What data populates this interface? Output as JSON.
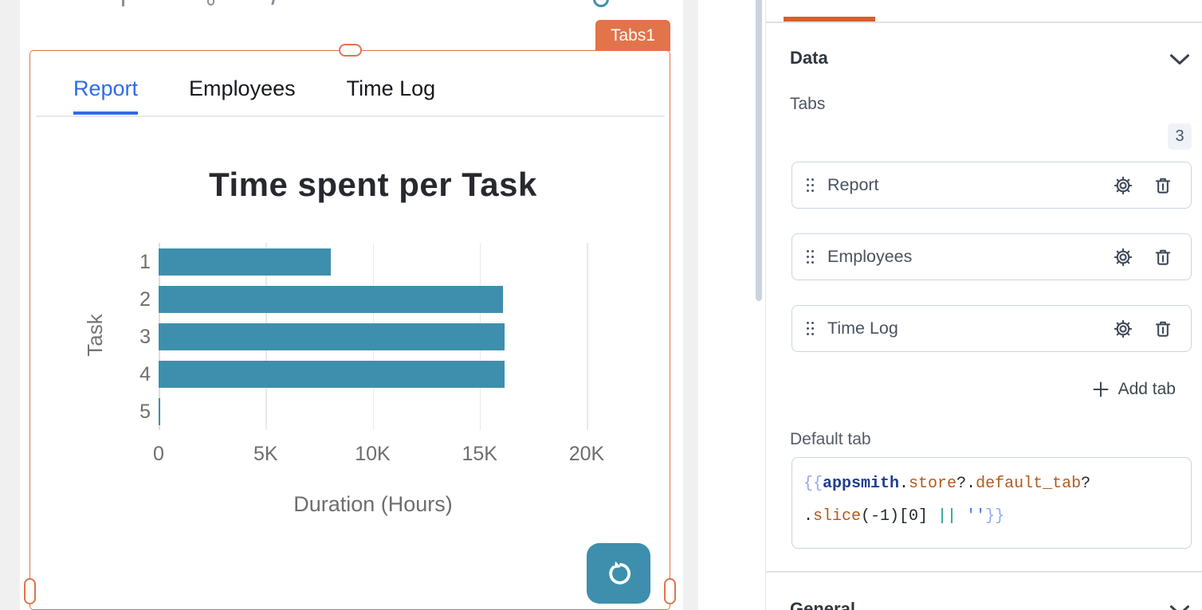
{
  "canvas": {
    "selected_widget_name": "Tabs1",
    "widget_tabs": [
      {
        "label": "Report",
        "active": true
      },
      {
        "label": "Employees",
        "active": false
      },
      {
        "label": "Time Log",
        "active": false
      }
    ],
    "selection_color": "#E2734A",
    "active_tab_color": "#2F6BE4"
  },
  "chart_data": {
    "type": "bar",
    "orientation": "horizontal",
    "title": "Time spent per Task",
    "xlabel": "Duration (Hours)",
    "ylabel": "Task",
    "categories": [
      "1",
      "2",
      "3",
      "4",
      "5"
    ],
    "values": [
      8050,
      16100,
      16150,
      16150,
      60
    ],
    "xlim": [
      0,
      20000
    ],
    "xtick_labels": [
      "0",
      "5K",
      "10K",
      "15K",
      "20K"
    ],
    "bar_color": "#3D8FAD",
    "grid": true,
    "legend": false
  },
  "refresh_button": {
    "color": "#3D8FAD"
  },
  "property_pane": {
    "data_section_title": "Data",
    "tabs_field_label": "Tabs",
    "tabs_count_badge": "3",
    "tab_items": [
      {
        "label": "Report"
      },
      {
        "label": "Employees"
      },
      {
        "label": "Time Log"
      }
    ],
    "add_tab_label": "Add tab",
    "default_tab_label": "Default tab",
    "default_tab_code_tokens": [
      {
        "t": "{{",
        "c": "#8FA7EC"
      },
      {
        "t": "appsmith",
        "c": "#1E3E8F",
        "b": true
      },
      {
        "t": ".",
        "c": "#23272E"
      },
      {
        "t": "store",
        "c": "#B45A1D"
      },
      {
        "t": "?.",
        "c": "#23272E"
      },
      {
        "t": "default_tab",
        "c": "#B45A1D"
      },
      {
        "t": "?",
        "c": "#23272E"
      },
      {
        "t": "\n",
        "c": ""
      },
      {
        "t": ".",
        "c": "#23272E"
      },
      {
        "t": "slice",
        "c": "#B45A1D"
      },
      {
        "t": "(-1)[0] ",
        "c": "#23272E"
      },
      {
        "t": "||",
        "c": "#0F9795"
      },
      {
        "t": " ",
        "c": ""
      },
      {
        "t": "''",
        "c": "#3B73E8"
      },
      {
        "t": "}}",
        "c": "#8FA7EC"
      }
    ],
    "general_section_title": "General"
  }
}
